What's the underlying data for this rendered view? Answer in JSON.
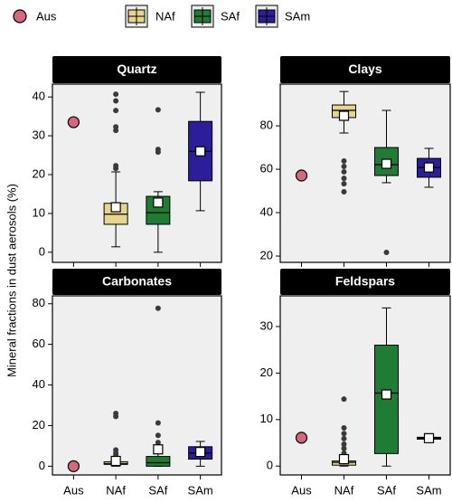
{
  "y_label": "Mineral fractions in dust aerosols (%)",
  "legend": [
    {
      "name": "Aus",
      "color": "#d9677c",
      "marker": "circle"
    },
    {
      "name": "NAf",
      "color": "#e8d58c",
      "marker": "box"
    },
    {
      "name": "SAf",
      "color": "#1e7d32",
      "marker": "box"
    },
    {
      "name": "SAm",
      "color": "#2b1e9a",
      "marker": "box"
    }
  ],
  "chart_data": [
    {
      "type": "box",
      "title": "Quartz",
      "ylim": [
        -2.6,
        43.3
      ],
      "yticks": [
        0,
        10,
        20,
        30,
        40
      ],
      "groups": [
        {
          "value": 33.5
        },
        {
          "min": 1.4,
          "q1": 7.2,
          "median": 9.8,
          "q3": 12.6,
          "max": 20.7,
          "mean": 11.6,
          "outliers": [
            40.7,
            39,
            36.5,
            32.3,
            31.4,
            22.3,
            21.6
          ]
        },
        {
          "min": 0,
          "q1": 7.2,
          "median": 10.2,
          "q3": 14.4,
          "max": 15.6,
          "mean": 12.8,
          "outliers": [
            36.7,
            26.5,
            25.8
          ]
        },
        {
          "min": 10.7,
          "q1": 18.4,
          "median": 26,
          "q3": 33.7,
          "max": 41.2,
          "mean": 26,
          "outliers": []
        }
      ]
    },
    {
      "type": "box",
      "title": "Clays",
      "ylim": [
        17.1,
        99.2
      ],
      "yticks": [
        20,
        40,
        60,
        80
      ],
      "groups": [
        {
          "value": 57.1
        },
        {
          "min": 76.7,
          "q1": 83.8,
          "median": 87.1,
          "q3": 89.6,
          "max": 95.8,
          "mean": 84.6,
          "outliers": [
            63.8,
            61.3,
            58.8,
            55.8,
            53.3,
            49.6
          ]
        },
        {
          "min": 53.8,
          "q1": 57.1,
          "median": 62.1,
          "q3": 70,
          "max": 87.1,
          "mean": 62.5,
          "outliers": [
            21.7
          ]
        },
        {
          "min": 51.7,
          "q1": 56.3,
          "median": 60.8,
          "q3": 65,
          "max": 69.6,
          "mean": 60.8,
          "outliers": []
        }
      ]
    },
    {
      "type": "box",
      "title": "Carbonates",
      "ylim": [
        -4.3,
        83.9
      ],
      "yticks": [
        0,
        20,
        40,
        60,
        80
      ],
      "categories": [
        "Aus",
        "NAf",
        "SAf",
        "SAm"
      ],
      "groups": [
        {
          "value": 0
        },
        {
          "min": 0,
          "q1": 0.9,
          "median": 1.3,
          "q3": 2.2,
          "max": 3.9,
          "mean": 2.6,
          "outliers": [
            26,
            24.5,
            8,
            6.5,
            5.5,
            4.5
          ]
        },
        {
          "min": 0,
          "q1": 0,
          "median": 1.7,
          "q3": 4.8,
          "max": 10,
          "mean": 8.3,
          "outliers": [
            77.8,
            21.3,
            15.2,
            11.7
          ]
        },
        {
          "min": 0,
          "q1": 3.5,
          "median": 6.5,
          "q3": 9.6,
          "max": 12.2,
          "mean": 7,
          "outliers": []
        }
      ]
    },
    {
      "type": "box",
      "title": "Feldspars",
      "ylim": [
        -1.9,
        36.6
      ],
      "yticks": [
        0,
        10,
        20,
        30
      ],
      "categories": [
        "Aus",
        "NAf",
        "SAf",
        "SAm"
      ],
      "groups": [
        {
          "value": 6.1
        },
        {
          "min": 0,
          "q1": 0.2,
          "median": 0.8,
          "q3": 1.1,
          "max": 2.1,
          "mean": 1.5,
          "outliers": [
            14.4,
            8.2,
            7,
            5.9,
            4.7,
            3.8,
            2.8
          ]
        },
        {
          "min": 0,
          "q1": 2.7,
          "median": 15.7,
          "q3": 26,
          "max": 34,
          "mean": 15.4,
          "outliers": []
        },
        {
          "min": 5.6,
          "q1": 5.8,
          "median": 6,
          "q3": 6.2,
          "max": 6.3,
          "mean": 6,
          "outliers": []
        }
      ]
    }
  ]
}
